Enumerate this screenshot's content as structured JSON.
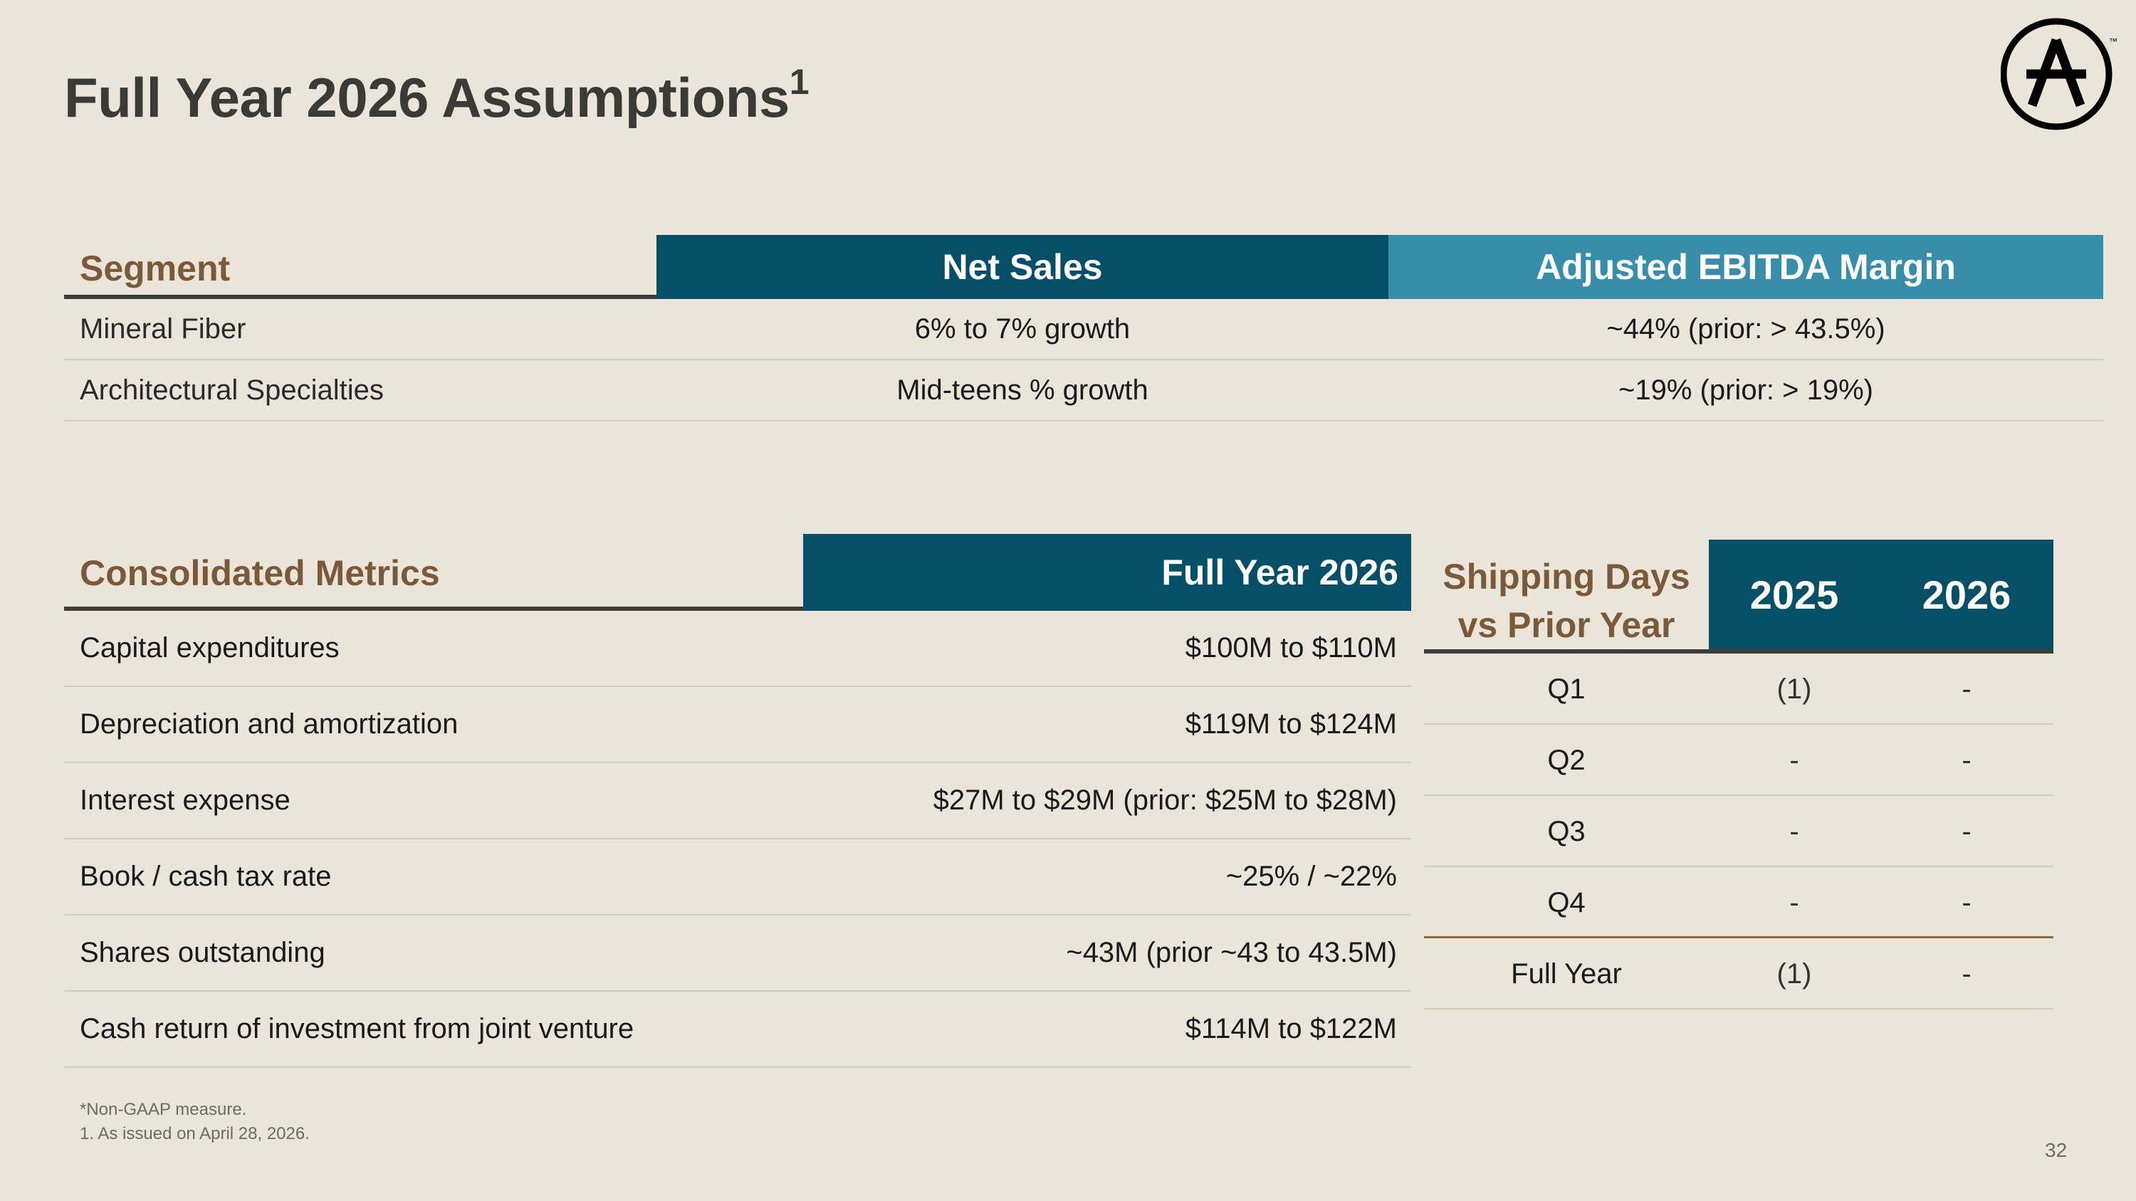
{
  "title": {
    "text": "Full Year 2026 Assumptions",
    "sup": "1"
  },
  "logo": {
    "icon": "circle-a-logo-icon",
    "letter": "A",
    "mark": "™"
  },
  "segment_table": {
    "headers": {
      "segment": "Segment",
      "net_sales": "Net Sales",
      "ebitda": "Adjusted EBITDA Margin"
    },
    "rows": [
      {
        "segment": "Mineral Fiber",
        "net_sales": "6% to 7% growth",
        "ebitda": "~44% (prior: > 43.5%)"
      },
      {
        "segment": "Architectural Specialties",
        "net_sales": "Mid-teens % growth",
        "ebitda": "~19% (prior: > 19%)"
      }
    ]
  },
  "consolidated": {
    "headers": {
      "metric": "Consolidated Metrics",
      "value": "Full Year 2026"
    },
    "rows": [
      {
        "metric": "Capital expenditures",
        "value": "$100M to $110M"
      },
      {
        "metric": "Depreciation and amortization",
        "value": "$119M to $124M"
      },
      {
        "metric": "Interest expense",
        "value": "$27M to $29M (prior: $25M to $28M)"
      },
      {
        "metric": "Book / cash tax rate",
        "value": "~25% / ~22%"
      },
      {
        "metric": "Shares outstanding",
        "value": "~43M (prior ~43 to 43.5M)"
      },
      {
        "metric": "Cash return of investment from joint venture",
        "value": "$114M to $122M"
      }
    ]
  },
  "shipping": {
    "headers": {
      "line1": "Shipping Days",
      "line2": "vs Prior Year",
      "y1": "2025",
      "y2": "2026"
    },
    "rows": [
      {
        "period": "Q1",
        "y1": "(1)",
        "y2": "-"
      },
      {
        "period": "Q2",
        "y1": "-",
        "y2": "-"
      },
      {
        "period": "Q3",
        "y1": "-",
        "y2": "-"
      },
      {
        "period": "Q4",
        "y1": "-",
        "y2": "-"
      },
      {
        "period": "Full Year",
        "y1": "(1)",
        "y2": "-"
      }
    ]
  },
  "footnotes": {
    "line1": "*Non-GAAP measure.",
    "line2": "1.  As issued on April 28, 2026."
  },
  "page_number": "32"
}
